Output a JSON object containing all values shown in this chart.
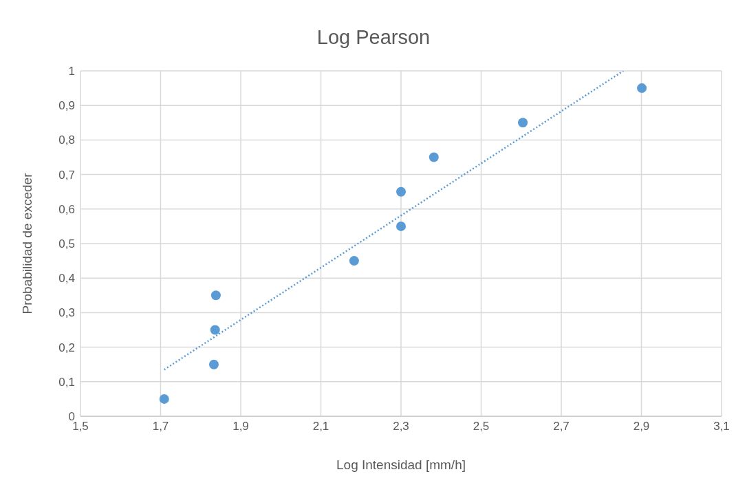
{
  "chart_data": {
    "type": "scatter",
    "title": "Log Pearson",
    "xlabel": "Log Intensidad [mm/h]",
    "ylabel": "Probabilidad de exceder",
    "x": [
      1.709,
      1.833,
      1.836,
      1.838,
      2.183,
      2.3,
      2.3,
      2.382,
      2.604,
      2.901
    ],
    "series": [
      {
        "color": "#5b9bd5",
        "marker": "circle",
        "values": [
          0.05,
          0.15,
          0.25,
          0.35,
          0.45,
          0.55,
          0.65,
          0.75,
          0.85,
          0.95
        ]
      },
      {
        "type": "line",
        "color": "#5b9bd5",
        "line_style": "dotted",
        "marker": "none",
        "x": [
          1.709,
          2.855
        ],
        "values": [
          0.135,
          1.0
        ]
      }
    ],
    "xlim": [
      1.5,
      3.1
    ],
    "xticks": [
      {
        "value": 1.5,
        "label": "1,5"
      },
      {
        "value": 1.7,
        "label": "1,7"
      },
      {
        "value": 1.9,
        "label": "1,9"
      },
      {
        "value": 2.1,
        "label": "2,1"
      },
      {
        "value": 2.3,
        "label": "2,3"
      },
      {
        "value": 2.5,
        "label": "2,5"
      },
      {
        "value": 2.7,
        "label": "2,7"
      },
      {
        "value": 2.9,
        "label": "2,9"
      },
      {
        "value": 3.1,
        "label": "3,1"
      }
    ],
    "ylim": [
      0,
      1
    ],
    "yticks": [
      0,
      {
        "value": 0.1,
        "label": "0,1"
      },
      {
        "value": 0.2,
        "label": "0,2"
      },
      {
        "value": 0.3,
        "label": "0,3"
      },
      {
        "value": 0.4,
        "label": "0,4"
      },
      {
        "value": 0.5,
        "label": "0,5"
      },
      {
        "value": 0.6,
        "label": "0,6"
      },
      {
        "value": 0.7,
        "label": "0,7"
      },
      {
        "value": 0.8,
        "label": "0,8"
      },
      {
        "value": 0.9,
        "label": "0,9"
      },
      1
    ],
    "grid": true
  }
}
